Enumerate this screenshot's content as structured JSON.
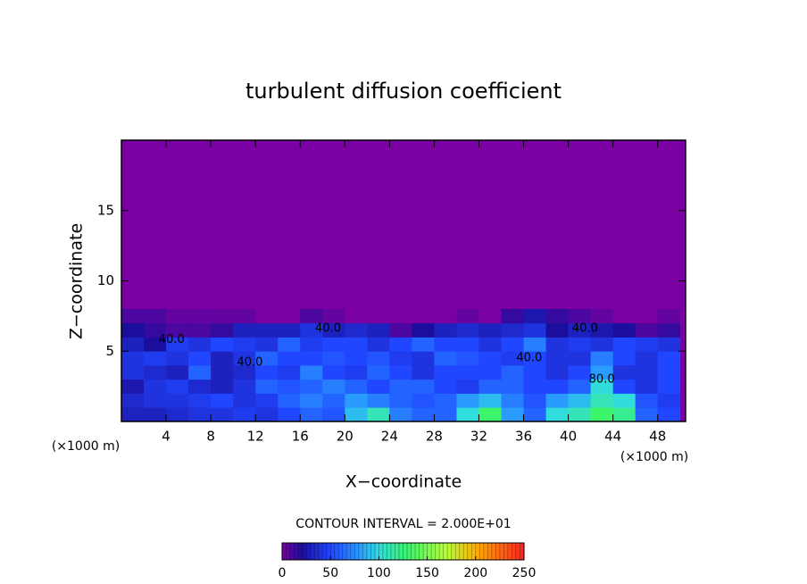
{
  "chart_data": {
    "type": "heatmap",
    "title": "turbulent diffusion coefficient",
    "xlabel": "X−coordinate",
    "ylabel": "Z−coordinate",
    "x_unit_left": "(×1000 m)",
    "x_unit_right": "(×1000 m)",
    "contour_note": "CONTOUR INTERVAL = 2.000E+01",
    "xlim": [
      0,
      50.5
    ],
    "ylim": [
      0,
      20
    ],
    "xticks": [
      4,
      8,
      12,
      16,
      20,
      24,
      28,
      32,
      36,
      40,
      44,
      48
    ],
    "yticks": [
      5,
      10,
      15
    ],
    "x_bins": [
      0,
      2,
      4,
      6,
      8,
      10,
      12,
      14,
      16,
      18,
      20,
      22,
      24,
      26,
      28,
      30,
      32,
      34,
      36,
      38,
      40,
      42,
      44,
      46,
      48,
      50
    ],
    "z_bins": [
      0,
      1,
      2,
      3,
      4,
      5,
      6,
      7,
      8
    ],
    "values": [
      [
        30,
        30,
        35,
        40,
        40,
        45,
        40,
        50,
        60,
        55,
        90,
        110,
        70,
        60,
        60,
        100,
        130,
        80,
        60,
        100,
        110,
        130,
        120,
        60,
        50
      ],
      [
        35,
        40,
        40,
        45,
        50,
        40,
        45,
        60,
        70,
        60,
        80,
        70,
        60,
        55,
        60,
        80,
        90,
        70,
        55,
        80,
        90,
        110,
        100,
        55,
        45
      ],
      [
        25,
        40,
        45,
        35,
        30,
        40,
        60,
        55,
        60,
        70,
        60,
        50,
        60,
        60,
        50,
        45,
        60,
        60,
        50,
        50,
        60,
        100,
        50,
        40,
        50
      ],
      [
        40,
        35,
        30,
        60,
        30,
        35,
        50,
        45,
        70,
        50,
        45,
        60,
        50,
        40,
        50,
        50,
        50,
        60,
        50,
        40,
        50,
        80,
        40,
        40,
        50
      ],
      [
        40,
        45,
        40,
        50,
        30,
        40,
        60,
        50,
        50,
        55,
        50,
        55,
        45,
        40,
        60,
        55,
        50,
        45,
        50,
        40,
        40,
        70,
        50,
        40,
        50
      ],
      [
        30,
        20,
        45,
        40,
        50,
        45,
        40,
        60,
        45,
        50,
        50,
        40,
        50,
        60,
        50,
        50,
        40,
        50,
        70,
        40,
        45,
        40,
        50,
        45,
        40
      ],
      [
        20,
        15,
        10,
        10,
        15,
        30,
        30,
        30,
        40,
        30,
        35,
        30,
        10,
        20,
        30,
        35,
        30,
        35,
        40,
        20,
        30,
        25,
        20,
        10,
        15
      ],
      [
        10,
        10,
        5,
        5,
        5,
        5,
        0,
        0,
        10,
        5,
        0,
        0,
        0,
        0,
        0,
        5,
        0,
        15,
        25,
        15,
        10,
        5,
        0,
        0,
        5
      ]
    ],
    "annotations": [
      {
        "text": "40.0",
        "x": 4.5,
        "y": 5.8
      },
      {
        "text": "40.0",
        "x": 11.5,
        "y": 4.2
      },
      {
        "text": "40.0",
        "x": 18.5,
        "y": 6.6
      },
      {
        "text": "40.0",
        "x": 36.5,
        "y": 4.5
      },
      {
        "text": "40.0",
        "x": 41.5,
        "y": 6.6
      },
      {
        "text": "80.0",
        "x": 43,
        "y": 3
      }
    ],
    "colorbar": {
      "lim": [
        0,
        250
      ],
      "ticks": [
        0,
        50,
        100,
        150,
        200,
        250
      ],
      "stops": [
        [
          0,
          "#7a00a3"
        ],
        [
          20,
          "#1c0e9c"
        ],
        [
          50,
          "#2046ff"
        ],
        [
          80,
          "#2a9cff"
        ],
        [
          100,
          "#30dcdc"
        ],
        [
          130,
          "#3cf56a"
        ],
        [
          170,
          "#b8ff3a"
        ],
        [
          200,
          "#ffb000"
        ],
        [
          250,
          "#ff2020"
        ]
      ]
    }
  }
}
